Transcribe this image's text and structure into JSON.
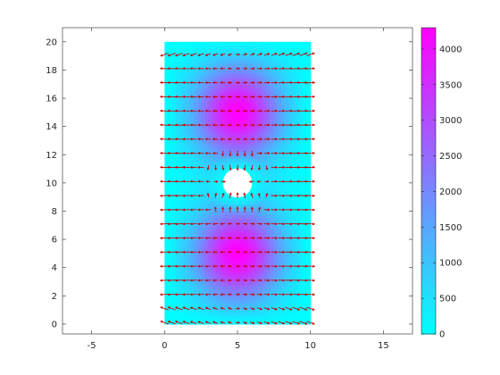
{
  "chart_data": {
    "type": "heatmap",
    "title": "",
    "xlabel": "",
    "ylabel": "",
    "xlim": [
      -7,
      17
    ],
    "ylim": [
      -0.7,
      21
    ],
    "xticks": [
      -5,
      0,
      5,
      10,
      15
    ],
    "yticks": [
      0,
      2,
      4,
      6,
      8,
      10,
      12,
      14,
      16,
      18,
      20
    ],
    "domain": {
      "x": [
        0,
        10
      ],
      "y": [
        0,
        20
      ]
    },
    "hole": {
      "center": [
        5,
        10
      ],
      "radius": 1
    },
    "field_peaks": [
      {
        "x": 5,
        "y": 15,
        "value": 4300
      },
      {
        "x": 5,
        "y": 5,
        "value": 4300
      }
    ],
    "quiver": {
      "color": "#cc0000",
      "x_spacing": 0.5,
      "y_spacing": 1,
      "description": "red arrows over the domain, mostly pointing horizontally outward"
    },
    "colorbar": {
      "min": 0,
      "max": 4300,
      "ticks": [
        0,
        500,
        1000,
        1500,
        2000,
        2500,
        3000,
        3500,
        4000
      ],
      "colormap": [
        "#00ffff",
        "#ff00ff"
      ]
    }
  }
}
